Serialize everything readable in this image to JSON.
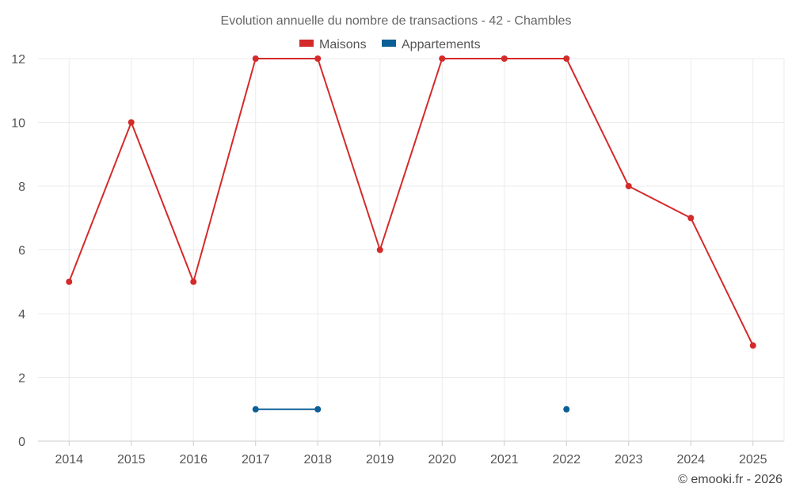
{
  "chart_data": {
    "type": "line",
    "title": "Evolution annuelle du nombre de transactions - 42 - Chambles",
    "categories": [
      "2014",
      "2015",
      "2016",
      "2017",
      "2018",
      "2019",
      "2020",
      "2021",
      "2022",
      "2023",
      "2024",
      "2025"
    ],
    "series": [
      {
        "name": "Maisons",
        "color": "#d42a2a",
        "values": [
          5,
          10,
          5,
          12,
          12,
          6,
          12,
          12,
          12,
          8,
          7,
          3
        ]
      },
      {
        "name": "Appartements",
        "color": "#0b5f96",
        "values": [
          null,
          null,
          null,
          1,
          1,
          null,
          null,
          null,
          1,
          null,
          null,
          null
        ]
      }
    ],
    "ylim": [
      0,
      12
    ],
    "yticks": [
      0,
      2,
      4,
      6,
      8,
      10,
      12
    ],
    "grid": true,
    "legend_position": "top-center",
    "xlabel": "",
    "ylabel": ""
  },
  "credit": "© emooki.fr - 2026"
}
